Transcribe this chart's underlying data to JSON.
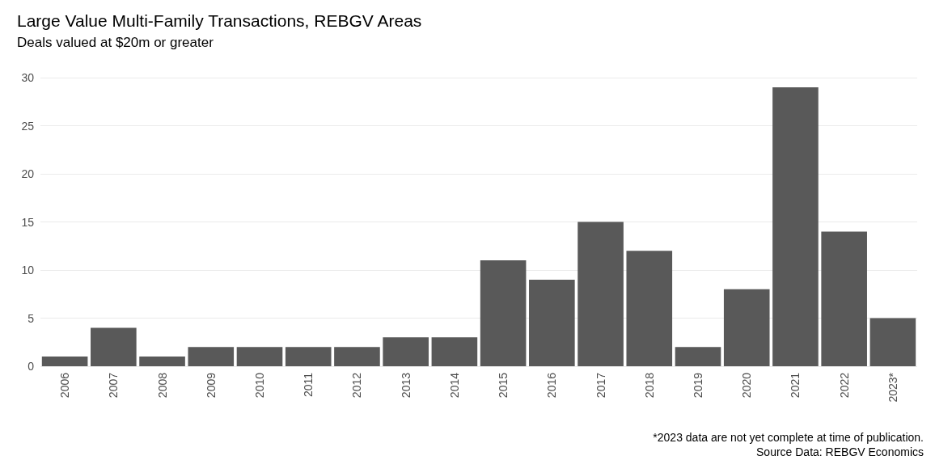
{
  "chart_data": {
    "type": "bar",
    "title": "Large Value Multi-Family Transactions, REBGV Areas",
    "subtitle": "Deals valued at $20m or greater",
    "categories": [
      "2006",
      "2007",
      "2008",
      "2009",
      "2010",
      "2011",
      "2012",
      "2013",
      "2014",
      "2015",
      "2016",
      "2017",
      "2018",
      "2019",
      "2020",
      "2021",
      "2022",
      "2023*"
    ],
    "values": [
      1,
      4,
      1,
      2,
      2,
      2,
      2,
      3,
      3,
      11,
      9,
      15,
      12,
      2,
      8,
      29,
      14,
      5
    ],
    "color": "#595959",
    "ylim": [
      0,
      30
    ],
    "yticks": [
      0,
      5,
      10,
      15,
      20,
      25,
      30
    ],
    "grid": "y",
    "annotations": [
      "*2023 data are not yet complete at time of publication.",
      "Source Data: REBGV Economics"
    ]
  }
}
